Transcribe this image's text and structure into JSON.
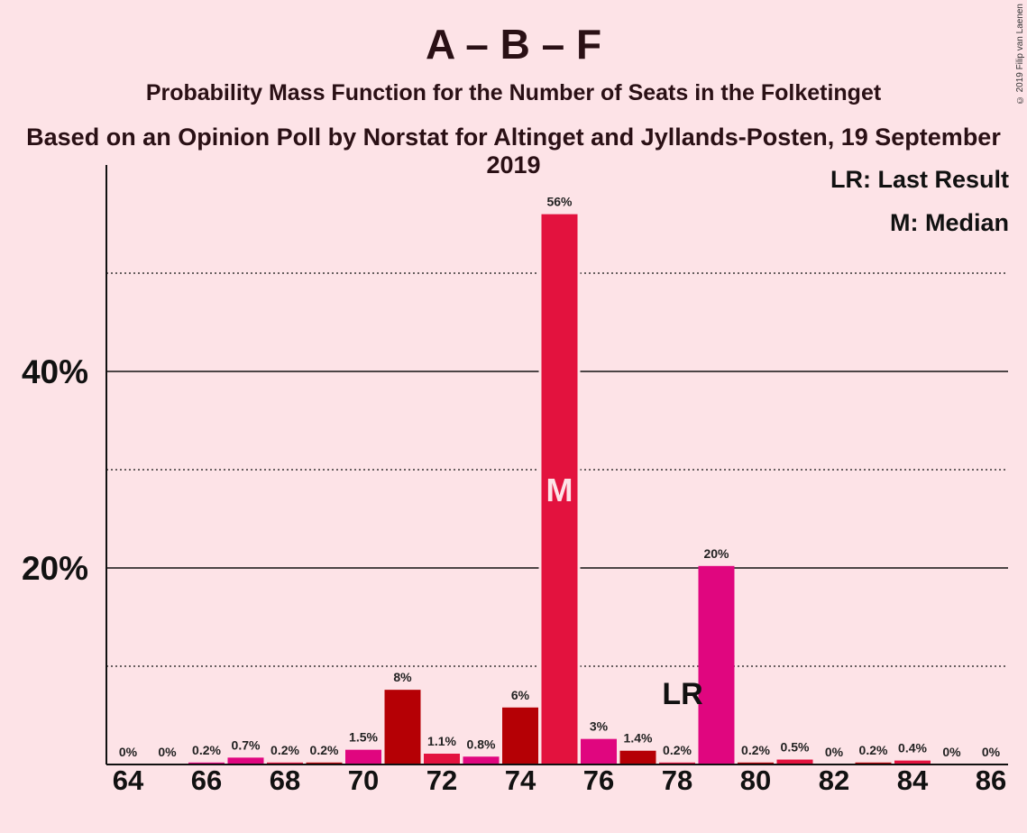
{
  "titles": {
    "main": "A – B – F",
    "subtitle": "Probability Mass Function for the Number of Seats in the Folketinget",
    "source": "Based on an Opinion Poll by Norstat for Altinget and Jyllands-Posten, 19 September 2019"
  },
  "copyright": "© 2019 Filip van Laenen",
  "legend": {
    "last_result": "LR: Last Result",
    "median": "M: Median"
  },
  "markers": {
    "median_label": "M",
    "median_seat": 75,
    "last_result_label": "LR",
    "last_result_seat": 79
  },
  "colors": {
    "background": "#FDE3E7",
    "crimson": "#E3123E",
    "darkred": "#B50005",
    "magenta": "#E0067F",
    "text": "#111111"
  },
  "chart_data": {
    "type": "bar",
    "xlim": [
      64,
      86
    ],
    "ylim": [
      0,
      60
    ],
    "y_ticks": [
      {
        "value": 20,
        "label": "20%"
      },
      {
        "value": 40,
        "label": "40%"
      }
    ],
    "y_minor_gridlines": [
      10,
      30,
      50
    ],
    "x_ticks": [
      64,
      66,
      68,
      70,
      72,
      74,
      76,
      78,
      80,
      82,
      84,
      86
    ],
    "bars": [
      {
        "seat": 64,
        "value": 0,
        "label": "0%",
        "color": "crimson"
      },
      {
        "seat": 65,
        "value": 0,
        "label": "0%",
        "color": "darkred"
      },
      {
        "seat": 66,
        "value": 0.2,
        "label": "0.2%",
        "color": "magenta"
      },
      {
        "seat": 67,
        "value": 0.7,
        "label": "0.7%",
        "color": "magenta"
      },
      {
        "seat": 68,
        "value": 0.2,
        "label": "0.2%",
        "color": "crimson"
      },
      {
        "seat": 69,
        "value": 0.2,
        "label": "0.2%",
        "color": "darkred"
      },
      {
        "seat": 70,
        "value": 1.5,
        "label": "1.5%",
        "color": "magenta"
      },
      {
        "seat": 71,
        "value": 7.6,
        "label": "8%",
        "color": "darkred"
      },
      {
        "seat": 72,
        "value": 1.1,
        "label": "1.1%",
        "color": "crimson"
      },
      {
        "seat": 73,
        "value": 0.8,
        "label": "0.8%",
        "color": "magenta"
      },
      {
        "seat": 74,
        "value": 5.8,
        "label": "6%",
        "color": "darkred"
      },
      {
        "seat": 75,
        "value": 56,
        "label": "56%",
        "color": "crimson"
      },
      {
        "seat": 76,
        "value": 2.6,
        "label": "3%",
        "color": "magenta"
      },
      {
        "seat": 77,
        "value": 1.4,
        "label": "1.4%",
        "color": "darkred"
      },
      {
        "seat": 78,
        "value": 0.2,
        "label": "0.2%",
        "color": "crimson"
      },
      {
        "seat": 79,
        "value": 20.2,
        "label": "20%",
        "color": "magenta"
      },
      {
        "seat": 80,
        "value": 0.2,
        "label": "0.2%",
        "color": "darkred"
      },
      {
        "seat": 81,
        "value": 0.5,
        "label": "0.5%",
        "color": "crimson"
      },
      {
        "seat": 82,
        "value": 0,
        "label": "0%",
        "color": "magenta"
      },
      {
        "seat": 83,
        "value": 0.2,
        "label": "0.2%",
        "color": "darkred"
      },
      {
        "seat": 84,
        "value": 0.4,
        "label": "0.4%",
        "color": "crimson"
      },
      {
        "seat": 85,
        "value": 0,
        "label": "0%",
        "color": "magenta"
      },
      {
        "seat": 86,
        "value": 0,
        "label": "0%",
        "color": "darkred"
      }
    ]
  }
}
